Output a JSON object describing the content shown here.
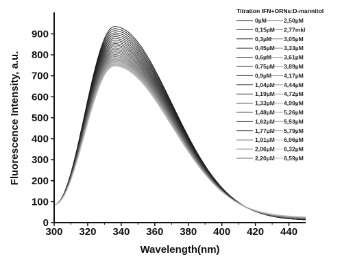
{
  "chart_data": {
    "type": "line",
    "title": "",
    "xlabel": "Wavelength(nm)",
    "ylabel": "Fluorescence Intensity, a.u.",
    "xlim": [
      300,
      450
    ],
    "ylim": [
      0,
      970
    ],
    "x_ticks": [
      "300",
      "320",
      "340",
      "360",
      "380",
      "400",
      "420",
      "440"
    ],
    "y_ticks": [
      "0",
      "100",
      "200",
      "300",
      "400",
      "500",
      "600",
      "700",
      "800",
      "900"
    ],
    "grid": false,
    "legend_position": "top-right",
    "legend_title": "Titration IFN+ORNs:D-mannitol",
    "peak_wavelength": 336,
    "start_value": 85,
    "series": [
      {
        "name": "0µM",
        "peak": 935,
        "tail": 10,
        "color": "#111111"
      },
      {
        "name": "0,15µM",
        "peak": 925,
        "tail": 10,
        "color": "#161616"
      },
      {
        "name": "0,3µM",
        "peak": 915,
        "tail": 11,
        "color": "#1b1b1b"
      },
      {
        "name": "0,45µM",
        "peak": 905,
        "tail": 11,
        "color": "#202020"
      },
      {
        "name": "0,6µM",
        "peak": 896,
        "tail": 12,
        "color": "#252525"
      },
      {
        "name": "0,75µM",
        "peak": 887,
        "tail": 12,
        "color": "#2a2a2a"
      },
      {
        "name": "0,9µM",
        "peak": 878,
        "tail": 13,
        "color": "#303030"
      },
      {
        "name": "1,04µM",
        "peak": 870,
        "tail": 13,
        "color": "#363636"
      },
      {
        "name": "1,19µM",
        "peak": 862,
        "tail": 14,
        "color": "#3c3c3c"
      },
      {
        "name": "1,33µM",
        "peak": 854,
        "tail": 14,
        "color": "#424242"
      },
      {
        "name": "1,48µM",
        "peak": 847,
        "tail": 15,
        "color": "#484848"
      },
      {
        "name": "1,62µM",
        "peak": 840,
        "tail": 15,
        "color": "#4e4e4e"
      },
      {
        "name": "1,77µM",
        "peak": 833,
        "tail": 16,
        "color": "#545454"
      },
      {
        "name": "1,91µM",
        "peak": 826,
        "tail": 16,
        "color": "#5a5a5a"
      },
      {
        "name": "2,06µM",
        "peak": 820,
        "tail": 17,
        "color": "#606060"
      },
      {
        "name": "2,20µM",
        "peak": 814,
        "tail": 17,
        "color": "#666666"
      },
      {
        "name": "2,50µM",
        "peak": 808,
        "tail": 18,
        "color": "#6c6c6c"
      },
      {
        "name": "2,77mkl",
        "peak": 802,
        "tail": 18,
        "color": "#727272"
      },
      {
        "name": "3,05µM",
        "peak": 797,
        "tail": 19,
        "color": "#787878"
      },
      {
        "name": "3,33µM",
        "peak": 792,
        "tail": 19,
        "color": "#7e7e7e"
      },
      {
        "name": "3,61µM",
        "peak": 787,
        "tail": 20,
        "color": "#848484"
      },
      {
        "name": "3,89µM",
        "peak": 782,
        "tail": 20,
        "color": "#8a8a8a"
      },
      {
        "name": "4,17µM",
        "peak": 778,
        "tail": 21,
        "color": "#909090"
      },
      {
        "name": "4,44µM",
        "peak": 774,
        "tail": 21,
        "color": "#959595"
      },
      {
        "name": "4,72µM",
        "peak": 770,
        "tail": 22,
        "color": "#9a9a9a"
      },
      {
        "name": "4,99µM",
        "peak": 766,
        "tail": 22,
        "color": "#9f9f9f"
      },
      {
        "name": "5,26µM",
        "peak": 762,
        "tail": 23,
        "color": "#a4a4a4"
      },
      {
        "name": "5,53µM",
        "peak": 758,
        "tail": 23,
        "color": "#a9a9a9"
      },
      {
        "name": "5,79µM",
        "peak": 755,
        "tail": 24,
        "color": "#aeaeae"
      },
      {
        "name": "6,06µM",
        "peak": 752,
        "tail": 24,
        "color": "#b3b3b3"
      },
      {
        "name": "6,32µM",
        "peak": 749,
        "tail": 25,
        "color": "#b7b7b7"
      },
      {
        "name": "6,59µM",
        "peak": 746,
        "tail": 25,
        "color": "#bbbbbb"
      }
    ]
  }
}
